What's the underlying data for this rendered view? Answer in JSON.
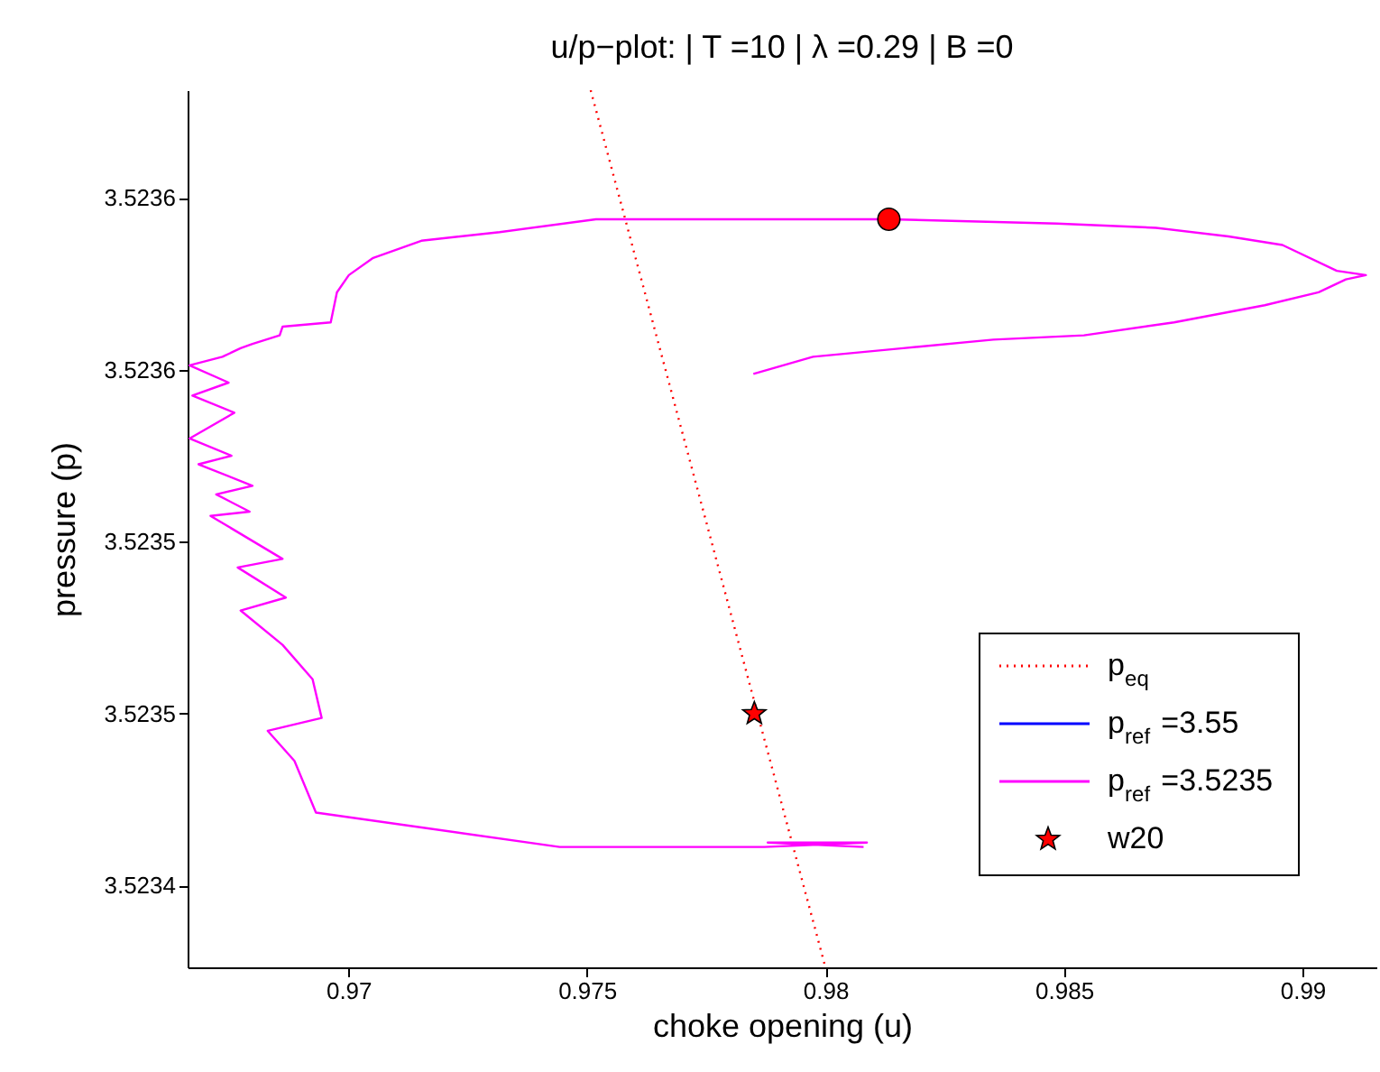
{
  "chart_data": {
    "type": "line",
    "title": "u/p−plot:  | T =10 | λ =0.29 | B =0",
    "xlabel": "choke opening (u)",
    "ylabel": "pressure (p)",
    "xlim": [
      0.96663,
      0.99155
    ],
    "ylim": [
      3.523421,
      3.523625
    ],
    "xticks": [
      0.97,
      0.975,
      0.98,
      0.985,
      0.99
    ],
    "yticks": [
      {
        "value": 3.52344,
        "label": "3.5234"
      },
      {
        "value": 3.52348,
        "label": "3.5235"
      },
      {
        "value": 3.52352,
        "label": "3.5235"
      },
      {
        "value": 3.52356,
        "label": "3.5236"
      },
      {
        "value": 3.5236,
        "label": "3.5236"
      }
    ],
    "grid": false,
    "legend": "bottom right",
    "series": [
      {
        "name": "p$_{eq}$",
        "line_style": "dotted",
        "color": "#ff0000",
        "x": [
          0.97508,
          0.98
        ],
        "values": [
          3.523625,
          3.523421
        ]
      },
      {
        "name": "p$_{ref}$ =3.55",
        "line_style": "solid",
        "color": "#0000ff"
      },
      {
        "name": "p$_{ref}$ =3.5235",
        "line_style": "solid",
        "color": "#ff00ff",
        "x": [
          0.97849,
          0.97974,
          0.98163,
          0.98352,
          0.98542,
          0.98731,
          0.98921,
          0.99034,
          0.99091,
          0.99133,
          0.99072,
          0.98958,
          0.98845,
          0.98693,
          0.98485,
          0.98133,
          0.97784,
          0.97519,
          0.97317,
          0.97153,
          0.97052,
          0.97001,
          0.96976,
          0.96963,
          0.96862,
          0.96856,
          0.96799,
          0.96774,
          0.96736,
          0.96667,
          0.96749,
          0.96673,
          0.96761,
          0.96667,
          0.96755,
          0.96686,
          0.96799,
          0.96723,
          0.96793,
          0.96711,
          0.96862,
          0.96768,
          0.96869,
          0.96774,
          0.96862,
          0.96925,
          0.96944,
          0.96831,
          0.96887,
          0.96932,
          0.97443,
          0.97872,
          0.98087,
          0.97879,
          0.9808
        ],
        "values": [
          3.523559,
          3.523563,
          3.523565,
          3.523567,
          3.523568,
          3.523571,
          3.523575,
          3.523578,
          3.523581,
          3.523582,
          3.523583,
          3.523589,
          3.523591,
          3.523593,
          3.523594,
          3.523595,
          3.523595,
          3.523595,
          3.523592,
          3.52359,
          3.523586,
          3.523582,
          3.523578,
          3.523571,
          3.52357,
          3.523568,
          3.523566,
          3.523565,
          3.523563,
          3.523561,
          3.523557,
          3.523554,
          3.52355,
          3.523544,
          3.52354,
          3.523538,
          3.523533,
          3.523531,
          3.523527,
          3.523526,
          3.523516,
          3.523514,
          3.523507,
          3.523504,
          3.523496,
          3.523488,
          3.523479,
          3.523476,
          3.523469,
          3.523457,
          3.523449,
          3.523449,
          3.52345,
          3.52345,
          3.523449
        ]
      },
      {
        "name": "w20",
        "type": "scatter",
        "marker": "star",
        "color": "#ff0000",
        "x": [
          0.97851
        ],
        "values": [
          3.52348
        ]
      },
      {
        "type": "scatter",
        "marker": "circle",
        "color": "#ff0000",
        "x": [
          0.98133
        ],
        "values": [
          3.523595
        ]
      }
    ]
  }
}
